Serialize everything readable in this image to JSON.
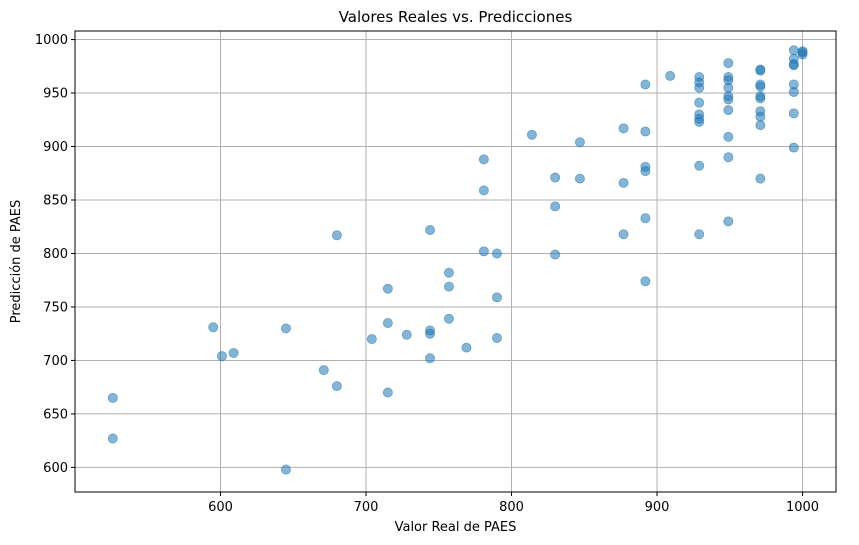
{
  "chart_data": {
    "type": "scatter",
    "title": "Valores Reales vs. Predicciones",
    "xlabel": "Valor Real de PAES",
    "ylabel": "Predicción de PAES",
    "xlim": [
      500,
      1023
    ],
    "ylim": [
      577,
      1008
    ],
    "xticks": [
      600,
      700,
      800,
      900,
      1000
    ],
    "yticks": [
      600,
      650,
      700,
      750,
      800,
      850,
      900,
      950,
      1000
    ],
    "grid": true,
    "point_color": "#1f77b4",
    "point_alpha": 0.55,
    "points": [
      [
        526,
        665
      ],
      [
        526,
        627
      ],
      [
        595,
        731
      ],
      [
        601,
        704
      ],
      [
        609,
        707
      ],
      [
        645,
        730
      ],
      [
        645,
        598
      ],
      [
        671,
        691
      ],
      [
        680,
        676
      ],
      [
        680,
        817
      ],
      [
        704,
        720
      ],
      [
        715,
        767
      ],
      [
        715,
        735
      ],
      [
        715,
        670
      ],
      [
        728,
        724
      ],
      [
        744,
        822
      ],
      [
        744,
        728
      ],
      [
        744,
        725
      ],
      [
        744,
        702
      ],
      [
        757,
        782
      ],
      [
        757,
        769
      ],
      [
        757,
        739
      ],
      [
        769,
        712
      ],
      [
        781,
        888
      ],
      [
        781,
        859
      ],
      [
        781,
        802
      ],
      [
        790,
        800
      ],
      [
        790,
        759
      ],
      [
        790,
        721
      ],
      [
        814,
        911
      ],
      [
        830,
        871
      ],
      [
        830,
        844
      ],
      [
        830,
        799
      ],
      [
        847,
        904
      ],
      [
        847,
        870
      ],
      [
        877,
        917
      ],
      [
        877,
        866
      ],
      [
        877,
        818
      ],
      [
        892,
        958
      ],
      [
        892,
        914
      ],
      [
        892,
        881
      ],
      [
        892,
        877
      ],
      [
        892,
        833
      ],
      [
        892,
        774
      ],
      [
        909,
        966
      ],
      [
        929,
        965
      ],
      [
        929,
        960
      ],
      [
        929,
        955
      ],
      [
        929,
        941
      ],
      [
        929,
        930
      ],
      [
        929,
        926
      ],
      [
        929,
        923
      ],
      [
        929,
        882
      ],
      [
        929,
        818
      ],
      [
        949,
        978
      ],
      [
        949,
        965
      ],
      [
        949,
        962
      ],
      [
        949,
        955
      ],
      [
        949,
        947
      ],
      [
        949,
        944
      ],
      [
        949,
        934
      ],
      [
        949,
        909
      ],
      [
        949,
        890
      ],
      [
        949,
        830
      ],
      [
        971,
        972
      ],
      [
        971,
        971
      ],
      [
        971,
        958
      ],
      [
        971,
        956
      ],
      [
        971,
        947
      ],
      [
        971,
        945
      ],
      [
        971,
        933
      ],
      [
        971,
        928
      ],
      [
        971,
        920
      ],
      [
        971,
        870
      ],
      [
        994,
        990
      ],
      [
        994,
        982
      ],
      [
        994,
        977
      ],
      [
        994,
        976
      ],
      [
        994,
        958
      ],
      [
        994,
        951
      ],
      [
        994,
        931
      ],
      [
        994,
        899
      ],
      [
        1000,
        989
      ],
      [
        1000,
        988
      ],
      [
        1000,
        986
      ]
    ]
  }
}
